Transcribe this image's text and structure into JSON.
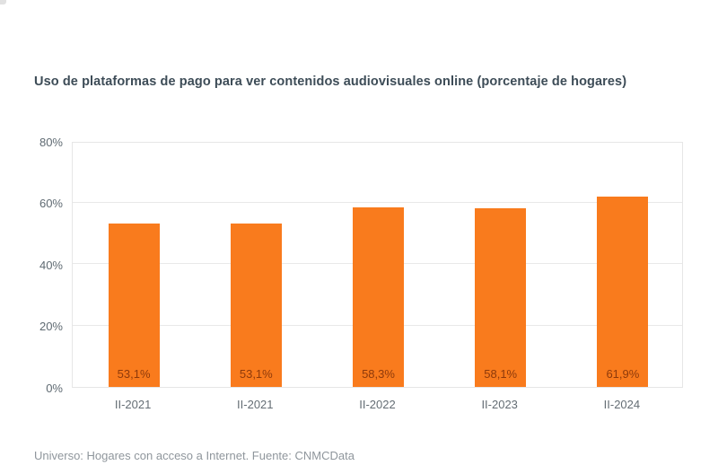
{
  "chart": {
    "title": "Uso de plataformas de pago para ver contenidos audiovisuales online (porcentaje de hogares)",
    "footer": "Universo: Hogares con acceso a Internet. Fuente: CNMCData"
  },
  "chart_data": {
    "type": "bar",
    "title": "Uso de plataformas de pago para ver contenidos audiovisuales online (porcentaje de hogares)",
    "categories": [
      "II-2021",
      "II-2021",
      "II-2022",
      "II-2023",
      "II-2024"
    ],
    "values": [
      53.1,
      53.1,
      58.3,
      58.1,
      61.9
    ],
    "value_labels": [
      "53,1%",
      "53,1%",
      "58,3%",
      "58,1%",
      "61,9%"
    ],
    "xlabel": "",
    "ylabel": "",
    "ylim": [
      0,
      80
    ],
    "yticks": [
      0,
      20,
      40,
      60,
      80
    ],
    "ytick_labels": [
      "0%",
      "20%",
      "40%",
      "60%",
      "80%"
    ],
    "grid": true,
    "legend": "none",
    "source_note": "Universo: Hogares con acceso a Internet. Fuente: CNMCData",
    "colors": {
      "bar": "#f97b1d",
      "bar_value_label": "#8e3a0b",
      "grid": "#e9e9e9",
      "plot_border": "#e6e6e6",
      "title_text": "#3d4c57",
      "axis_text": "#5f6a72",
      "footer_text": "#8f969c"
    }
  }
}
